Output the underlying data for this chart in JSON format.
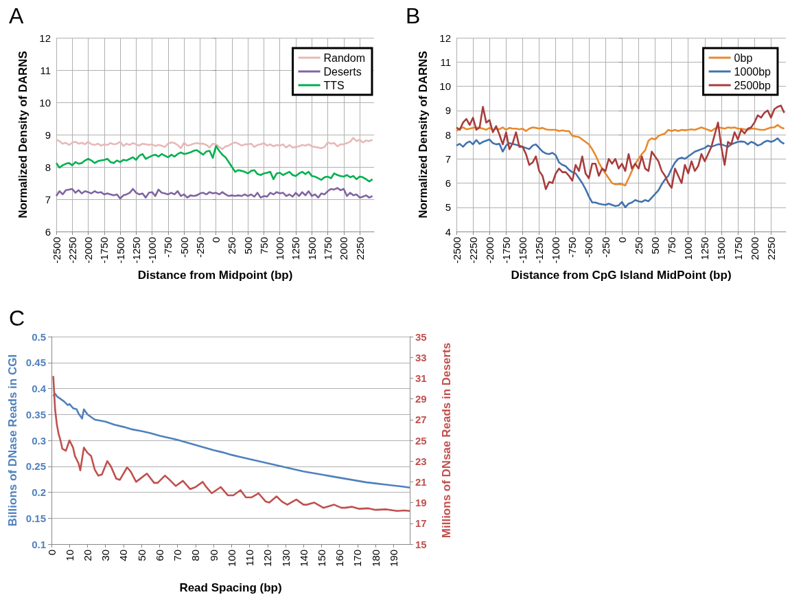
{
  "chart_data": [
    {
      "type": "line",
      "title": "A",
      "xlabel": "Distance from Midpoint (bp)",
      "ylabel": "Normalized Density of DARNS",
      "x": [
        -2500,
        -2450,
        -2400,
        -2350,
        -2300,
        -2250,
        -2200,
        -2150,
        -2100,
        -2050,
        -2000,
        -1950,
        -1900,
        -1850,
        -1800,
        -1750,
        -1700,
        -1650,
        -1600,
        -1550,
        -1500,
        -1450,
        -1400,
        -1350,
        -1300,
        -1250,
        -1200,
        -1150,
        -1100,
        -1050,
        -1000,
        -950,
        -900,
        -850,
        -800,
        -750,
        -700,
        -650,
        -600,
        -550,
        -500,
        -450,
        -400,
        -350,
        -300,
        -250,
        -200,
        -150,
        -100,
        -50,
        0,
        50,
        100,
        150,
        200,
        250,
        300,
        350,
        400,
        450,
        500,
        550,
        600,
        650,
        700,
        750,
        800,
        850,
        900,
        950,
        1000,
        1050,
        1100,
        1150,
        1200,
        1250,
        1300,
        1350,
        1400,
        1450,
        1500,
        1550,
        1600,
        1650,
        1700,
        1750,
        1800,
        1850,
        1900,
        1950,
        2000,
        2050,
        2100,
        2150,
        2200,
        2250,
        2300,
        2350,
        2400,
        2450
      ],
      "series": [
        {
          "name": "Random",
          "color": "#e6b9b8",
          "values": [
            8.85,
            8.8,
            8.72,
            8.75,
            8.68,
            8.75,
            8.78,
            8.72,
            8.75,
            8.7,
            8.78,
            8.7,
            8.68,
            8.72,
            8.66,
            8.7,
            8.68,
            8.74,
            8.7,
            8.72,
            8.78,
            8.65,
            8.72,
            8.68,
            8.74,
            8.7,
            8.66,
            8.72,
            8.7,
            8.68,
            8.7,
            8.65,
            8.68,
            8.66,
            8.62,
            8.72,
            8.76,
            8.74,
            8.68,
            8.58,
            8.75,
            8.66,
            8.68,
            8.72,
            8.74,
            8.72,
            8.72,
            8.68,
            8.6,
            8.72,
            8.7,
            8.62,
            8.55,
            8.64,
            8.66,
            8.72,
            8.76,
            8.72,
            8.66,
            8.7,
            8.7,
            8.72,
            8.62,
            8.68,
            8.7,
            8.74,
            8.66,
            8.7,
            8.64,
            8.68,
            8.66,
            8.7,
            8.6,
            8.68,
            8.6,
            8.62,
            8.64,
            8.68,
            8.66,
            8.7,
            8.64,
            8.62,
            8.6,
            8.58,
            8.62,
            8.76,
            8.72,
            8.74,
            8.64,
            8.7,
            8.7,
            8.74,
            8.78,
            8.9,
            8.8,
            8.84,
            8.76,
            8.82,
            8.8,
            8.84
          ]
        },
        {
          "name": "Deserts",
          "color": "#8064a2",
          "values": [
            7.1,
            7.25,
            7.15,
            7.28,
            7.3,
            7.32,
            7.2,
            7.28,
            7.18,
            7.25,
            7.22,
            7.18,
            7.25,
            7.2,
            7.22,
            7.15,
            7.18,
            7.15,
            7.12,
            7.15,
            7.02,
            7.12,
            7.15,
            7.2,
            7.32,
            7.2,
            7.15,
            7.18,
            7.05,
            7.2,
            7.22,
            7.1,
            7.3,
            7.2,
            7.18,
            7.15,
            7.2,
            7.15,
            7.25,
            7.1,
            7.15,
            7.05,
            7.12,
            7.1,
            7.12,
            7.18,
            7.2,
            7.15,
            7.22,
            7.18,
            7.2,
            7.15,
            7.22,
            7.15,
            7.1,
            7.12,
            7.1,
            7.12,
            7.1,
            7.15,
            7.1,
            7.15,
            7.08,
            7.2,
            7.05,
            7.1,
            7.08,
            7.2,
            7.15,
            7.22,
            7.18,
            7.2,
            7.1,
            7.15,
            7.08,
            7.2,
            7.1,
            7.22,
            7.12,
            7.25,
            7.1,
            7.15,
            7.05,
            7.18,
            7.15,
            7.25,
            7.32,
            7.3,
            7.35,
            7.28,
            7.32,
            7.1,
            7.2,
            7.12,
            7.15,
            7.05,
            7.08,
            7.12,
            7.05,
            7.1
          ]
        },
        {
          "name": "TTS",
          "color": "#00b050",
          "values": [
            8.12,
            7.98,
            8.05,
            8.1,
            8.12,
            8.05,
            8.15,
            8.1,
            8.12,
            8.2,
            8.25,
            8.2,
            8.12,
            8.18,
            8.2,
            8.22,
            8.25,
            8.15,
            8.12,
            8.2,
            8.15,
            8.22,
            8.2,
            8.25,
            8.3,
            8.22,
            8.35,
            8.4,
            8.25,
            8.3,
            8.35,
            8.38,
            8.32,
            8.4,
            8.35,
            8.3,
            8.38,
            8.32,
            8.4,
            8.45,
            8.4,
            8.42,
            8.45,
            8.5,
            8.52,
            8.45,
            8.38,
            8.48,
            8.5,
            8.28,
            8.65,
            8.5,
            8.38,
            8.3,
            8.15,
            8.0,
            7.85,
            7.9,
            7.88,
            7.85,
            7.8,
            7.88,
            7.9,
            7.78,
            7.75,
            7.8,
            7.82,
            7.85,
            7.62,
            7.8,
            7.82,
            7.75,
            7.8,
            7.85,
            7.75,
            7.72,
            7.8,
            7.85,
            7.78,
            7.85,
            7.72,
            7.7,
            7.65,
            7.6,
            7.68,
            7.7,
            7.65,
            7.8,
            7.75,
            7.72,
            7.7,
            7.75,
            7.68,
            7.72,
            7.62,
            7.7,
            7.68,
            7.62,
            7.55,
            7.62
          ]
        }
      ],
      "xlim": [
        -2500,
        2475
      ],
      "xticks": [
        -2500,
        -2250,
        -2000,
        -1750,
        -1500,
        -1250,
        -1000,
        -750,
        -500,
        -250,
        0,
        250,
        500,
        750,
        1000,
        1250,
        1500,
        1750,
        2000,
        2250
      ],
      "ylim": [
        6,
        12
      ],
      "yticks": [
        6,
        7,
        8,
        9,
        10,
        11,
        12
      ],
      "grid": true,
      "legend": "top right",
      "marker": "none"
    },
    {
      "type": "line",
      "title": "B",
      "xlabel": "Distance from CpG Island MidPoint (bp)",
      "ylabel": "Normalized Density of DARNS",
      "x": [
        -2500,
        -2450,
        -2400,
        -2350,
        -2300,
        -2250,
        -2200,
        -2150,
        -2100,
        -2050,
        -2000,
        -1950,
        -1900,
        -1850,
        -1800,
        -1750,
        -1700,
        -1650,
        -1600,
        -1550,
        -1500,
        -1450,
        -1400,
        -1350,
        -1300,
        -1250,
        -1200,
        -1150,
        -1100,
        -1050,
        -1000,
        -950,
        -900,
        -850,
        -800,
        -750,
        -700,
        -650,
        -600,
        -550,
        -500,
        -450,
        -400,
        -350,
        -300,
        -250,
        -200,
        -150,
        -100,
        -50,
        0,
        50,
        100,
        150,
        200,
        250,
        300,
        350,
        400,
        450,
        500,
        550,
        600,
        650,
        700,
        750,
        800,
        850,
        900,
        950,
        1000,
        1050,
        1100,
        1150,
        1200,
        1250,
        1300,
        1350,
        1400,
        1450,
        1500,
        1550,
        1600,
        1650,
        1700,
        1750,
        1800,
        1850,
        1900,
        1950,
        2000,
        2050,
        2100,
        2150,
        2200,
        2250,
        2300,
        2350,
        2400,
        2450
      ],
      "series": [
        {
          "name": "0bp",
          "color": "#e8892e",
          "values": [
            8.15,
            8.25,
            8.3,
            8.22,
            8.25,
            8.28,
            8.3,
            8.28,
            8.25,
            8.2,
            8.28,
            8.2,
            8.25,
            8.22,
            8.3,
            8.2,
            8.28,
            8.25,
            8.25,
            8.22,
            8.25,
            8.15,
            8.25,
            8.3,
            8.28,
            8.25,
            8.28,
            8.22,
            8.2,
            8.2,
            8.2,
            8.15,
            8.18,
            8.15,
            8.15,
            7.95,
            7.92,
            7.9,
            7.8,
            7.7,
            7.6,
            7.4,
            7.15,
            6.85,
            6.6,
            6.4,
            6.2,
            6.0,
            5.95,
            5.95,
            5.95,
            5.9,
            6.2,
            6.5,
            6.8,
            7.0,
            7.2,
            7.35,
            7.75,
            7.85,
            7.8,
            7.95,
            8.0,
            8.05,
            8.2,
            8.15,
            8.2,
            8.15,
            8.2,
            8.18,
            8.2,
            8.22,
            8.2,
            8.25,
            8.3,
            8.25,
            8.2,
            8.15,
            8.25,
            8.3,
            8.28,
            8.25,
            8.3,
            8.28,
            8.3,
            8.25,
            8.25,
            8.22,
            8.2,
            8.25,
            8.25,
            8.22,
            8.2,
            8.2,
            8.25,
            8.3,
            8.3,
            8.4,
            8.3,
            8.25
          ]
        },
        {
          "name": "1000bp",
          "color": "#4272ae",
          "values": [
            7.55,
            7.62,
            7.5,
            7.65,
            7.72,
            7.6,
            7.78,
            7.62,
            7.7,
            7.75,
            7.8,
            7.65,
            7.6,
            7.62,
            7.3,
            7.55,
            7.65,
            7.62,
            7.58,
            7.55,
            7.5,
            7.45,
            7.4,
            7.55,
            7.6,
            7.45,
            7.3,
            7.22,
            7.2,
            7.25,
            7.15,
            6.85,
            6.75,
            6.7,
            6.55,
            6.45,
            6.4,
            6.2,
            6.0,
            5.75,
            5.45,
            5.2,
            5.2,
            5.15,
            5.12,
            5.1,
            5.15,
            5.1,
            5.05,
            5.08,
            5.22,
            5.0,
            5.15,
            5.2,
            5.3,
            5.25,
            5.22,
            5.3,
            5.25,
            5.4,
            5.55,
            5.7,
            5.95,
            6.15,
            6.3,
            6.6,
            6.85,
            7.0,
            7.05,
            7.0,
            7.1,
            7.2,
            7.3,
            7.35,
            7.4,
            7.45,
            7.55,
            7.5,
            7.55,
            7.6,
            7.6,
            7.55,
            7.5,
            7.6,
            7.65,
            7.7,
            7.72,
            7.7,
            7.6,
            7.7,
            7.65,
            7.55,
            7.6,
            7.7,
            7.75,
            7.7,
            7.75,
            7.85,
            7.7,
            7.62
          ]
        },
        {
          "name": "2500bp",
          "color": "#a83c3c",
          "values": [
            8.3,
            8.2,
            8.5,
            8.65,
            8.4,
            8.7,
            8.2,
            8.3,
            9.15,
            8.5,
            8.6,
            8.1,
            8.35,
            8.0,
            7.6,
            8.1,
            7.4,
            7.65,
            8.1,
            7.5,
            7.5,
            7.2,
            6.75,
            6.85,
            7.1,
            6.5,
            6.3,
            5.75,
            6.05,
            6.0,
            6.4,
            6.6,
            6.45,
            6.45,
            6.3,
            6.1,
            6.75,
            6.5,
            7.1,
            6.4,
            6.2,
            6.8,
            6.8,
            6.3,
            6.6,
            6.5,
            7.0,
            6.8,
            7.0,
            6.6,
            6.8,
            6.5,
            7.2,
            6.6,
            6.8,
            6.6,
            7.1,
            6.6,
            6.5,
            7.3,
            7.1,
            6.9,
            6.5,
            6.3,
            6.0,
            5.8,
            6.6,
            6.3,
            6.0,
            6.75,
            6.4,
            6.9,
            6.5,
            6.7,
            7.2,
            6.9,
            7.2,
            7.5,
            8.0,
            8.5,
            7.5,
            6.75,
            7.7,
            7.6,
            8.1,
            7.8,
            8.2,
            8.05,
            8.25,
            8.3,
            8.5,
            8.8,
            8.7,
            8.9,
            9.0,
            8.7,
            9.05,
            9.15,
            9.2,
            8.9
          ]
        }
      ],
      "xlim": [
        -2500,
        2475
      ],
      "xticks": [
        -2500,
        -2250,
        -2000,
        -1750,
        -1500,
        -1250,
        -1000,
        -750,
        -500,
        -250,
        0,
        250,
        500,
        750,
        1000,
        1250,
        1500,
        1750,
        2000,
        2250
      ],
      "ylim": [
        4,
        12
      ],
      "yticks": [
        4,
        5,
        6,
        7,
        8,
        9,
        10,
        11,
        12
      ],
      "grid": true,
      "legend": "top right",
      "marker": "none"
    },
    {
      "type": "line",
      "title": "C",
      "xlabel": "Read Spacing (bp)",
      "ylabel": "Billions of DNase Reads in CGI",
      "y2label": "Millions of DNsae Reads in Deserts",
      "series": [
        {
          "color": "#4f81bd",
          "x": [
            1,
            2,
            3,
            5,
            7,
            9,
            10,
            12,
            14,
            15,
            17,
            18,
            20,
            22,
            24,
            27,
            30,
            35,
            40,
            45,
            50,
            55,
            60,
            65,
            70,
            75,
            80,
            85,
            90,
            95,
            100,
            105,
            110,
            115,
            120,
            125,
            130,
            135,
            140,
            145,
            150,
            155,
            160,
            165,
            170,
            175,
            180,
            185,
            190,
            195,
            199
          ],
          "values": [
            0.385,
            0.39,
            0.385,
            0.38,
            0.375,
            0.368,
            0.37,
            0.362,
            0.36,
            0.352,
            0.342,
            0.36,
            0.35,
            0.345,
            0.34,
            0.338,
            0.336,
            0.33,
            0.326,
            0.321,
            0.318,
            0.314,
            0.309,
            0.305,
            0.301,
            0.296,
            0.291,
            0.286,
            0.281,
            0.277,
            0.272,
            0.268,
            0.264,
            0.26,
            0.256,
            0.252,
            0.248,
            0.244,
            0.24,
            0.237,
            0.234,
            0.231,
            0.228,
            0.225,
            0.222,
            0.219,
            0.217,
            0.215,
            0.213,
            0.211,
            0.209
          ]
        },
        {
          "color": "#c0504d",
          "axis": "y2",
          "x": [
            1,
            2,
            3,
            4,
            5,
            6,
            8,
            10,
            12,
            13,
            15,
            16,
            18,
            20,
            22,
            24,
            26,
            28,
            31,
            33,
            36,
            38,
            42,
            44,
            47,
            50,
            53,
            57,
            59,
            63,
            65,
            69,
            73,
            77,
            80,
            84,
            86,
            89,
            94,
            98,
            101,
            105,
            108,
            111,
            115,
            119,
            121,
            125,
            128,
            131,
            136,
            140,
            142,
            146,
            151,
            153,
            157,
            161,
            163,
            167,
            171,
            176,
            180,
            186,
            192,
            196,
            199
          ],
          "values": [
            31.2,
            28,
            26.5,
            25.6,
            25,
            24.2,
            24,
            25,
            24.3,
            23.5,
            22.8,
            22.1,
            24.3,
            23.8,
            23.5,
            22.2,
            21.6,
            21.7,
            23,
            22.5,
            21.3,
            21.2,
            22.4,
            22,
            21,
            21.4,
            21.8,
            20.9,
            20.9,
            21.6,
            21.3,
            20.6,
            21.1,
            20.3,
            20.5,
            21,
            20.5,
            19.9,
            20.5,
            19.7,
            19.7,
            20.2,
            19.5,
            19.5,
            19.9,
            19.1,
            19,
            19.6,
            19.1,
            18.8,
            19.3,
            18.8,
            18.8,
            19,
            18.5,
            18.6,
            18.8,
            18.5,
            18.5,
            18.6,
            18.4,
            18.45,
            18.3,
            18.35,
            18.2,
            18.25,
            18.2
          ]
        }
      ],
      "xlim": [
        0,
        199
      ],
      "xticks": [
        0,
        10,
        20,
        30,
        40,
        50,
        60,
        70,
        80,
        90,
        100,
        110,
        120,
        130,
        140,
        150,
        160,
        170,
        180,
        190
      ],
      "ylim": [
        0.1,
        0.5
      ],
      "yticks": [
        0.1,
        0.15,
        0.2,
        0.25,
        0.3,
        0.35,
        0.4,
        0.45,
        0.5
      ],
      "y2lim": [
        15,
        35
      ],
      "y2ticks": [
        15,
        17,
        19,
        21,
        23,
        25,
        27,
        29,
        31,
        33,
        35
      ],
      "grid": "y",
      "legend": false,
      "marker": "none"
    }
  ]
}
